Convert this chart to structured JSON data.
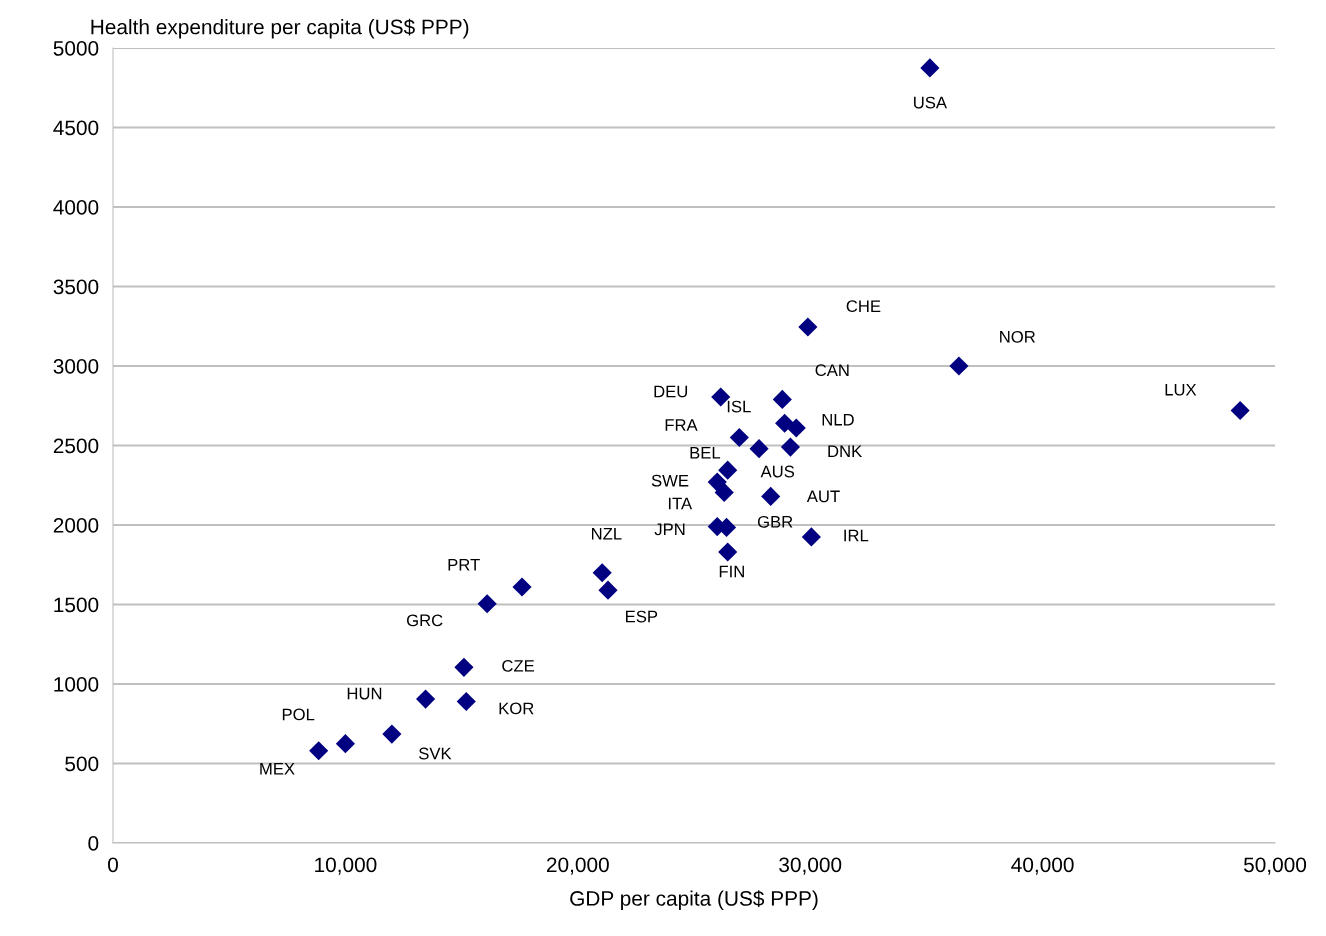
{
  "chart_data": {
    "type": "scatter",
    "xlabel": "GDP per capita (US$ PPP)",
    "ylabel": "Health expenditure per capita (US$ PPP)",
    "xlim": [
      0,
      50000
    ],
    "xticks": [
      {
        "value": 0,
        "label": "0"
      },
      {
        "value": 10000,
        "label": "10,000"
      },
      {
        "value": 20000,
        "label": "20,000"
      },
      {
        "value": 30000,
        "label": "30,000"
      },
      {
        "value": 40000,
        "label": "40,000"
      },
      {
        "value": 50000,
        "label": "50,000"
      }
    ],
    "ylim": [
      0,
      5000
    ],
    "yticks": [
      0,
      500,
      1000,
      1500,
      2000,
      2500,
      3000,
      3500,
      4000,
      4500,
      5000
    ],
    "grid": "y",
    "marker": "diamond",
    "series": [
      {
        "color": "#000080",
        "x": [
          35150,
          29900,
          36400,
          48500,
          26150,
          28800,
          28900,
          29400,
          26950,
          27800,
          29150,
          26450,
          26000,
          26300,
          28300,
          26000,
          26400,
          30050,
          26450,
          21050,
          21300,
          17600,
          16100,
          15100,
          13450,
          15200,
          12000,
          10000,
          8850
        ],
        "values": [
          4875,
          3245,
          3000,
          2720,
          2805,
          2790,
          2640,
          2610,
          2550,
          2480,
          2490,
          2345,
          2270,
          2205,
          2180,
          1990,
          1985,
          1925,
          1830,
          1700,
          1590,
          1610,
          1505,
          1105,
          905,
          890,
          685,
          625,
          580
        ]
      }
    ],
    "annotations": [
      {
        "text": "USA",
        "x": 35150,
        "y": 4875
      },
      {
        "text": "CHE",
        "x": 29900,
        "y": 3245
      },
      {
        "text": "NOR",
        "x": 36400,
        "y": 3000
      },
      {
        "text": "LUX",
        "x": 48500,
        "y": 2720
      },
      {
        "text": "DEU",
        "x": 26150,
        "y": 2805
      },
      {
        "text": "CAN",
        "x": 28800,
        "y": 2790
      },
      {
        "text": "ISL",
        "x": 28900,
        "y": 2640
      },
      {
        "text": "NLD",
        "x": 29400,
        "y": 2610
      },
      {
        "text": "FRA",
        "x": 26950,
        "y": 2550
      },
      {
        "text": "BEL",
        "x": 27800,
        "y": 2480
      },
      {
        "text": "DNK",
        "x": 29150,
        "y": 2490
      },
      {
        "text": "AUS",
        "x": 26450,
        "y": 2345
      },
      {
        "text": "SWE",
        "x": 26000,
        "y": 2270
      },
      {
        "text": "ITA",
        "x": 26300,
        "y": 2205
      },
      {
        "text": "AUT",
        "x": 28300,
        "y": 2180
      },
      {
        "text": "JPN",
        "x": 26000,
        "y": 1990
      },
      {
        "text": "GBR",
        "x": 26400,
        "y": 1985
      },
      {
        "text": "IRL",
        "x": 30050,
        "y": 1925
      },
      {
        "text": "FIN",
        "x": 26450,
        "y": 1830
      },
      {
        "text": "NZL",
        "x": 21050,
        "y": 1700
      },
      {
        "text": "ESP",
        "x": 21300,
        "y": 1590
      },
      {
        "text": "PRT",
        "x": 17600,
        "y": 1610
      },
      {
        "text": "GRC",
        "x": 16100,
        "y": 1505
      },
      {
        "text": "CZE",
        "x": 15100,
        "y": 1105
      },
      {
        "text": "HUN",
        "x": 13450,
        "y": 905
      },
      {
        "text": "KOR",
        "x": 15200,
        "y": 890
      },
      {
        "text": "SVK",
        "x": 12000,
        "y": 685
      },
      {
        "text": "POL",
        "x": 10000,
        "y": 625
      },
      {
        "text": "MEX",
        "x": 8850,
        "y": 580
      }
    ]
  }
}
